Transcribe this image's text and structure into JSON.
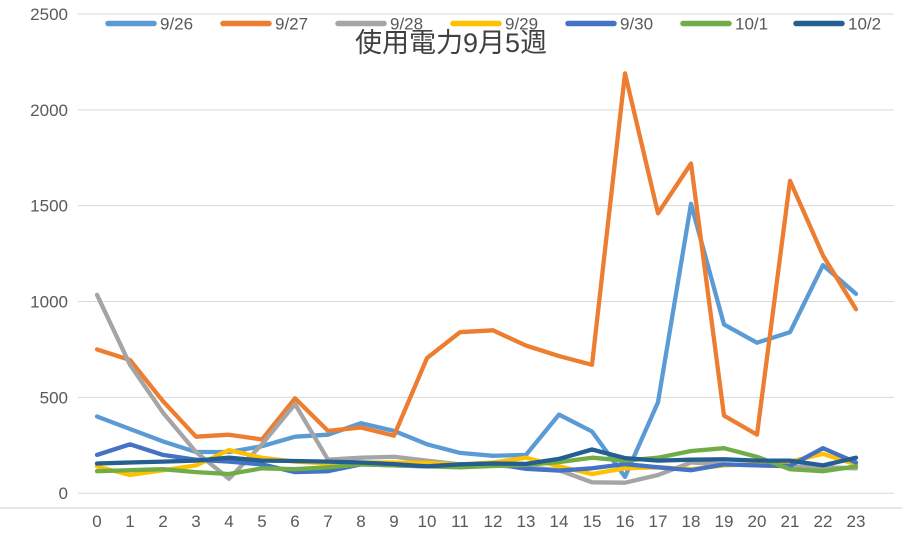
{
  "chart_data": {
    "type": "line",
    "title": "使用電力9月5週",
    "x": [
      0,
      1,
      2,
      3,
      4,
      5,
      6,
      7,
      8,
      9,
      10,
      11,
      12,
      13,
      14,
      15,
      16,
      17,
      18,
      19,
      20,
      21,
      22,
      23
    ],
    "xlabel": "",
    "ylabel": "",
    "ylim": [
      0,
      2500
    ],
    "yticks": [
      0,
      500,
      1000,
      1500,
      2000,
      2500
    ],
    "grid": true,
    "legend_position": "top",
    "series": [
      {
        "name": "9/26",
        "color": "#5B9BD5",
        "values": [
          400,
          335,
          270,
          215,
          215,
          245,
          295,
          305,
          365,
          325,
          255,
          210,
          195,
          200,
          410,
          322,
          85,
          475,
          1510,
          880,
          785,
          840,
          1190,
          1040
        ]
      },
      {
        "name": "9/27",
        "color": "#ED7D31",
        "values": [
          750,
          695,
          480,
          295,
          305,
          280,
          495,
          325,
          343,
          300,
          705,
          840,
          850,
          770,
          715,
          670,
          2190,
          1460,
          1720,
          405,
          305,
          1630,
          1240,
          960
        ]
      },
      {
        "name": "9/28",
        "color": "#A5A5A5",
        "values": [
          1035,
          670,
          420,
          215,
          75,
          255,
          465,
          175,
          185,
          190,
          170,
          150,
          145,
          135,
          120,
          57,
          55,
          95,
          160,
          150,
          145,
          140,
          135,
          130
        ]
      },
      {
        "name": "9/29",
        "color": "#FFC000",
        "values": [
          140,
          95,
          120,
          145,
          225,
          185,
          165,
          155,
          160,
          160,
          158,
          150,
          160,
          185,
          140,
          100,
          130,
          135,
          125,
          145,
          150,
          165,
          205,
          150
        ]
      },
      {
        "name": "9/30",
        "color": "#4472C4",
        "values": [
          200,
          255,
          200,
          175,
          165,
          150,
          110,
          115,
          150,
          145,
          140,
          150,
          155,
          127,
          118,
          130,
          152,
          135,
          120,
          150,
          145,
          143,
          235,
          160
        ]
      },
      {
        "name": "10/1",
        "color": "#70AD47",
        "values": [
          115,
          120,
          125,
          110,
          100,
          130,
          125,
          135,
          150,
          145,
          140,
          135,
          142,
          148,
          162,
          185,
          170,
          185,
          220,
          235,
          190,
          125,
          115,
          140
        ]
      },
      {
        "name": "10/2",
        "color": "#255E91",
        "values": [
          155,
          160,
          165,
          170,
          185,
          170,
          168,
          165,
          160,
          152,
          140,
          150,
          155,
          153,
          179,
          228,
          183,
          170,
          175,
          177,
          170,
          170,
          145,
          185
        ]
      }
    ],
    "style": {
      "grid_color": "#D9D9D9",
      "axis_line_color": "#D9D9D9",
      "tick_label_color": "#595959",
      "title_color": "#404040"
    }
  }
}
